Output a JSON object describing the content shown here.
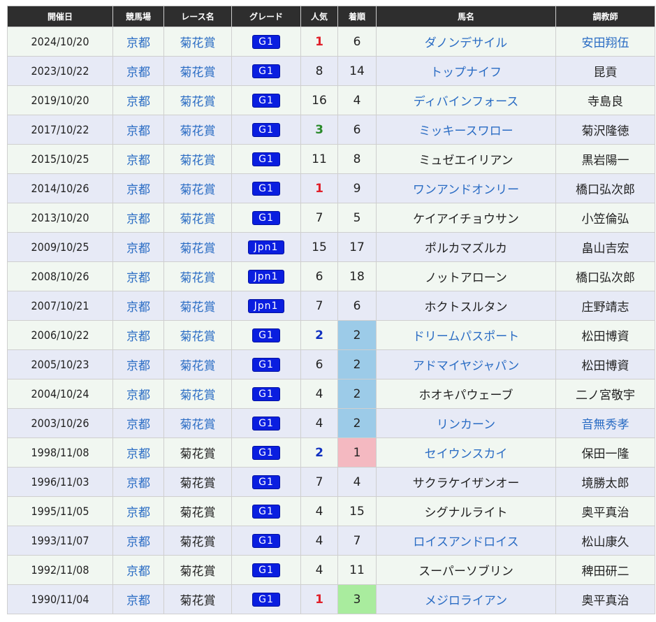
{
  "table": {
    "header": [
      "開催日",
      "競馬場",
      "レース名",
      "グレード",
      "人気",
      "着順",
      "馬名",
      "調教師"
    ],
    "rows": [
      {
        "date": "2024/10/20",
        "venue": "京都",
        "race": "菊花賞",
        "grade": "G1",
        "popularity": 1,
        "finish": 6,
        "horse": "ダノンデサイル",
        "trainer": "安田翔伍",
        "linked": [
          "venue",
          "race",
          "horse",
          "trainer"
        ]
      },
      {
        "date": "2023/10/22",
        "venue": "京都",
        "race": "菊花賞",
        "grade": "G1",
        "popularity": 8,
        "finish": 14,
        "horse": "トップナイフ",
        "trainer": "昆貢",
        "linked": [
          "venue",
          "race",
          "horse"
        ]
      },
      {
        "date": "2019/10/20",
        "venue": "京都",
        "race": "菊花賞",
        "grade": "G1",
        "popularity": 16,
        "finish": 4,
        "horse": "ディバインフォース",
        "trainer": "寺島良",
        "linked": [
          "venue",
          "race",
          "horse"
        ]
      },
      {
        "date": "2017/10/22",
        "venue": "京都",
        "race": "菊花賞",
        "grade": "G1",
        "popularity": 3,
        "finish": 6,
        "horse": "ミッキースワロー",
        "trainer": "菊沢隆徳",
        "linked": [
          "venue",
          "race",
          "horse"
        ]
      },
      {
        "date": "2015/10/25",
        "venue": "京都",
        "race": "菊花賞",
        "grade": "G1",
        "popularity": 11,
        "finish": 8,
        "horse": "ミュゼエイリアン",
        "trainer": "黒岩陽一",
        "linked": [
          "venue",
          "race"
        ]
      },
      {
        "date": "2014/10/26",
        "venue": "京都",
        "race": "菊花賞",
        "grade": "G1",
        "popularity": 1,
        "finish": 9,
        "horse": "ワンアンドオンリー",
        "trainer": "橋口弘次郎",
        "linked": [
          "venue",
          "race",
          "horse"
        ]
      },
      {
        "date": "2013/10/20",
        "venue": "京都",
        "race": "菊花賞",
        "grade": "G1",
        "popularity": 7,
        "finish": 5,
        "horse": "ケイアイチョウサン",
        "trainer": "小笠倫弘",
        "linked": [
          "venue",
          "race"
        ]
      },
      {
        "date": "2009/10/25",
        "venue": "京都",
        "race": "菊花賞",
        "grade": "Jpn1",
        "popularity": 15,
        "finish": 17,
        "horse": "ポルカマズルカ",
        "trainer": "畠山吉宏",
        "linked": [
          "venue",
          "race"
        ]
      },
      {
        "date": "2008/10/26",
        "venue": "京都",
        "race": "菊花賞",
        "grade": "Jpn1",
        "popularity": 6,
        "finish": 18,
        "horse": "ノットアローン",
        "trainer": "橋口弘次郎",
        "linked": [
          "venue",
          "race"
        ]
      },
      {
        "date": "2007/10/21",
        "venue": "京都",
        "race": "菊花賞",
        "grade": "Jpn1",
        "popularity": 7,
        "finish": 6,
        "horse": "ホクトスルタン",
        "trainer": "庄野靖志",
        "linked": [
          "venue",
          "race"
        ]
      },
      {
        "date": "2006/10/22",
        "venue": "京都",
        "race": "菊花賞",
        "grade": "G1",
        "popularity": 2,
        "finish": 2,
        "horse": "ドリームパスポート",
        "trainer": "松田博資",
        "linked": [
          "venue",
          "race",
          "horse"
        ]
      },
      {
        "date": "2005/10/23",
        "venue": "京都",
        "race": "菊花賞",
        "grade": "G1",
        "popularity": 6,
        "finish": 2,
        "horse": "アドマイヤジャパン",
        "trainer": "松田博資",
        "linked": [
          "venue",
          "race",
          "horse"
        ]
      },
      {
        "date": "2004/10/24",
        "venue": "京都",
        "race": "菊花賞",
        "grade": "G1",
        "popularity": 4,
        "finish": 2,
        "horse": "ホオキパウェーブ",
        "trainer": "二ノ宮敬宇",
        "linked": [
          "venue",
          "race"
        ]
      },
      {
        "date": "2003/10/26",
        "venue": "京都",
        "race": "菊花賞",
        "grade": "G1",
        "popularity": 4,
        "finish": 2,
        "horse": "リンカーン",
        "trainer": "音無秀孝",
        "linked": [
          "venue",
          "race",
          "horse",
          "trainer"
        ]
      },
      {
        "date": "1998/11/08",
        "venue": "京都",
        "race": "菊花賞",
        "grade": "G1",
        "popularity": 2,
        "finish": 1,
        "horse": "セイウンスカイ",
        "trainer": "保田一隆",
        "linked": [
          "venue",
          "horse"
        ]
      },
      {
        "date": "1996/11/03",
        "venue": "京都",
        "race": "菊花賞",
        "grade": "G1",
        "popularity": 7,
        "finish": 4,
        "horse": "サクラケイザンオー",
        "trainer": "境勝太郎",
        "linked": [
          "venue"
        ]
      },
      {
        "date": "1995/11/05",
        "venue": "京都",
        "race": "菊花賞",
        "grade": "G1",
        "popularity": 4,
        "finish": 15,
        "horse": "シグナルライト",
        "trainer": "奥平真治",
        "linked": [
          "venue"
        ]
      },
      {
        "date": "1993/11/07",
        "venue": "京都",
        "race": "菊花賞",
        "grade": "G1",
        "popularity": 4,
        "finish": 7,
        "horse": "ロイスアンドロイス",
        "trainer": "松山康久",
        "linked": [
          "venue",
          "horse"
        ]
      },
      {
        "date": "1992/11/08",
        "venue": "京都",
        "race": "菊花賞",
        "grade": "G1",
        "popularity": 4,
        "finish": 11,
        "horse": "スーパーソブリン",
        "trainer": "稗田研二",
        "linked": [
          "venue"
        ]
      },
      {
        "date": "1990/11/04",
        "venue": "京都",
        "race": "菊花賞",
        "grade": "G1",
        "popularity": 1,
        "finish": 3,
        "horse": "メジロライアン",
        "trainer": "奥平真治",
        "linked": [
          "venue",
          "horse"
        ]
      }
    ]
  }
}
